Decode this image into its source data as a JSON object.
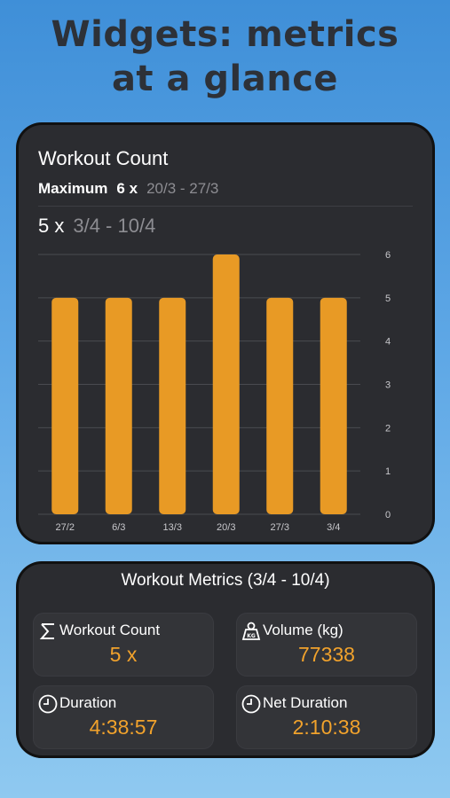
{
  "headline": {
    "line1": "Widgets: metrics",
    "line2": "at a glance"
  },
  "workout_card": {
    "title": "Workout Count",
    "maximum_label": "Maximum",
    "maximum_value": "6 x",
    "maximum_range": "20/3 - 27/3",
    "current_value": "5 x",
    "current_range": "3/4 - 10/4"
  },
  "chart_data": {
    "type": "bar",
    "categories": [
      "27/2",
      "6/3",
      "13/3",
      "20/3",
      "27/3",
      "3/4"
    ],
    "values": [
      5,
      5,
      5,
      6,
      5,
      5
    ],
    "ylim": [
      0,
      6
    ],
    "yticks": [
      "0",
      "1",
      "2",
      "3",
      "4",
      "5",
      "6"
    ],
    "grid": true,
    "bar_color": "#e89a25"
  },
  "metrics_card": {
    "title": "Workout Metrics (3/4 - 10/4)",
    "tiles": [
      {
        "label": "Workout Count",
        "value": "5 x",
        "icon": "sigma-icon"
      },
      {
        "label": "Volume (kg)",
        "value": "77338",
        "icon": "kettlebell-icon"
      },
      {
        "label": "Duration",
        "value": "4:38:57",
        "icon": "clock-icon"
      },
      {
        "label": "Net Duration",
        "value": "2:10:38",
        "icon": "clock-icon"
      }
    ]
  },
  "colors": {
    "accent": "#f1a22c",
    "card_bg": "#2b2c30",
    "muted_text": "#8d8d92"
  }
}
